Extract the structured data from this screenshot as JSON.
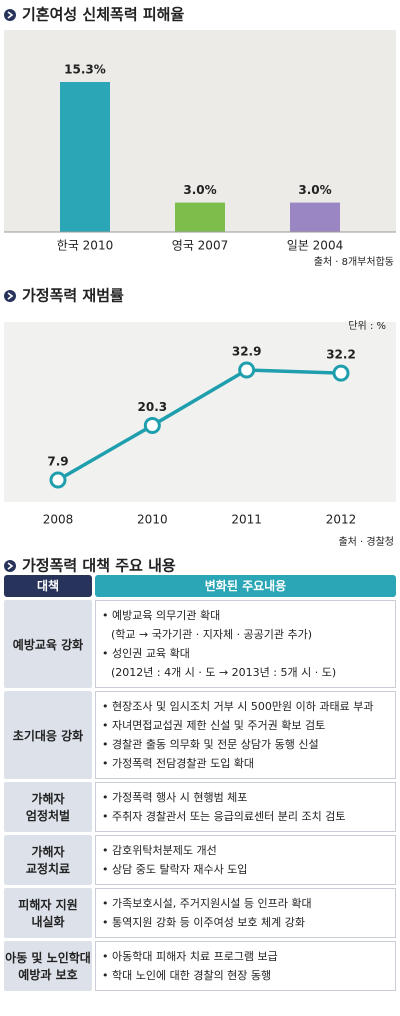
{
  "chart_data": [
    {
      "type": "bar",
      "title": "기혼여성 신체폭력 피해율",
      "categories": [
        "한국 2010",
        "영국 2007",
        "일본 2004"
      ],
      "values": [
        15.3,
        3.0,
        3.0
      ],
      "value_labels": [
        "15.3%",
        "3.0%",
        "3.0%"
      ],
      "colors": [
        "#2aa6b6",
        "#7dbd4c",
        "#9a86c2"
      ],
      "source": "출처 · 8개부처합동"
    },
    {
      "type": "line",
      "title": "가정폭력 재범률",
      "unit": "단위 : %",
      "categories": [
        "2008",
        "2010",
        "2011",
        "2012"
      ],
      "values": [
        7.9,
        20.3,
        32.9,
        32.2
      ],
      "color": "#1f9fae",
      "source": "출처 · 경찰청"
    }
  ],
  "table": {
    "title": "가정폭력 대책 주요 내용",
    "header": [
      "대책",
      "변화된 주요내용"
    ],
    "rows": [
      {
        "category": [
          "예방교육 강화"
        ],
        "items": [
          [
            "예방교육 의무기관 확대",
            "(학교 → 국가기관 · 지자체 · 공공기관 추가)"
          ],
          [
            "성인권 교육 확대",
            "(2012년 : 4개 시 · 도 → 2013년 : 5개 시 · 도)"
          ]
        ]
      },
      {
        "category": [
          "초기대응 강화"
        ],
        "items": [
          [
            "현장조사 및 임시조치 거부 시 500만원 이하 과태료 부과"
          ],
          [
            "자녀면접교섭권 제한 신설 및 주거권 확보 검토"
          ],
          [
            "경찰관 출동 의무화 및 전문 상담가 동행 신설"
          ],
          [
            "가정폭력 전담경찰관 도입 확대"
          ]
        ]
      },
      {
        "category": [
          "가해자",
          "엄정처벌"
        ],
        "items": [
          [
            "가정폭력 행사 시 현행범 체포"
          ],
          [
            "주취자 경찰관서 또는 응급의료센터 분리 조치 검토"
          ]
        ]
      },
      {
        "category": [
          "가해자",
          "교정치료"
        ],
        "items": [
          [
            "감호위탁처분제도 개선"
          ],
          [
            "상담 중도 탈락자 재수사 도입"
          ]
        ]
      },
      {
        "category": [
          "피해자 지원",
          "내실화"
        ],
        "items": [
          [
            "가족보호시설, 주거지원시설 등 인프라 확대"
          ],
          [
            "통역지원 강화 등 이주여성 보호 체계 강화"
          ]
        ]
      },
      {
        "category": [
          "아동 및 노인학대",
          "예방과 보호"
        ],
        "items": [
          [
            "아동학대 피해자 치료 프로그램 보급"
          ],
          [
            "학대 노인에 대한 경찰의 현장 동행"
          ]
        ]
      }
    ]
  }
}
